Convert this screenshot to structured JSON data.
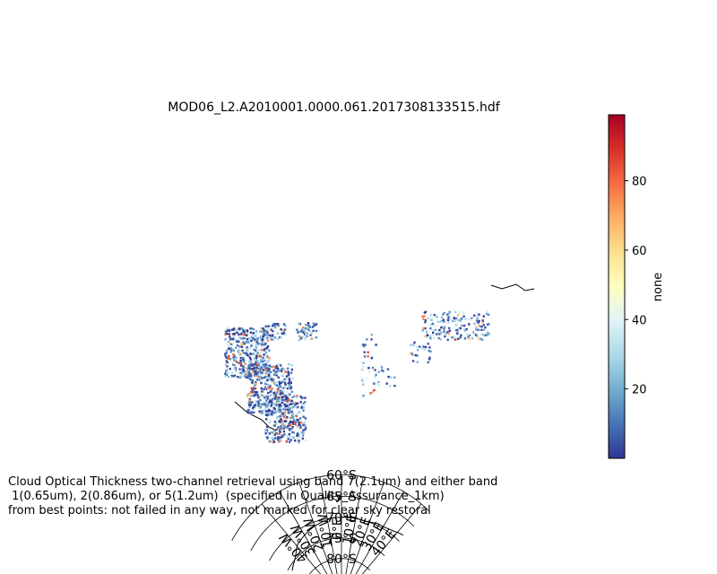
{
  "title": "MOD06_L2.A2010001.0000.061.2017308133515.hdf",
  "map": {
    "projection": "south polar stereographic",
    "lat_labels": [
      "60°S",
      "65°S",
      "70°S",
      "75°S",
      "80°S"
    ],
    "lon_labels": [
      "40°W",
      "30°W",
      "20°W",
      "10°W",
      "0°E",
      "10°E",
      "20°E",
      "30°E",
      "40°E"
    ],
    "data_colormap": "RdYlBu_r"
  },
  "colorbar": {
    "label": "none",
    "ticks": [
      "20",
      "40",
      "60",
      "80"
    ],
    "range": [
      0,
      99
    ],
    "colors": [
      "#313695",
      "#4575b4",
      "#74add1",
      "#abd9e9",
      "#e0f3f8",
      "#ffffbf",
      "#fee090",
      "#fdae61",
      "#f46d43",
      "#d73027",
      "#a50026"
    ]
  },
  "caption": [
    "Cloud Optical Thickness two-channel retrieval using band 7(2.1um) and either band",
    " 1(0.65um), 2(0.86um), or 5(1.2um)  (specified in Quality_Assurance_1km)",
    "from best points: not failed in any way, not marked for clear sky restoral"
  ]
}
